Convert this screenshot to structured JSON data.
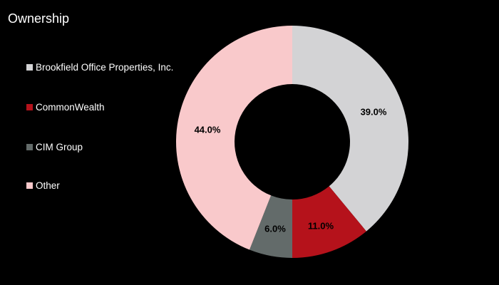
{
  "chart_data": {
    "type": "pie",
    "title": "Ownership",
    "donut": true,
    "legend": "left",
    "slices": [
      {
        "name": "Brookfield Office Properties, Inc.",
        "value": 39.0,
        "label": "39.0%",
        "color": "#d3d3d5"
      },
      {
        "name": "CommonWealth",
        "value": 11.0,
        "label": "11.0%",
        "color": "#b5121b"
      },
      {
        "name": "CIM Group",
        "value": 6.0,
        "label": "6.0%",
        "color": "#636b6a"
      },
      {
        "name": "Other",
        "value": 44.0,
        "label": "44.0%",
        "color": "#f9c9cb"
      }
    ]
  }
}
